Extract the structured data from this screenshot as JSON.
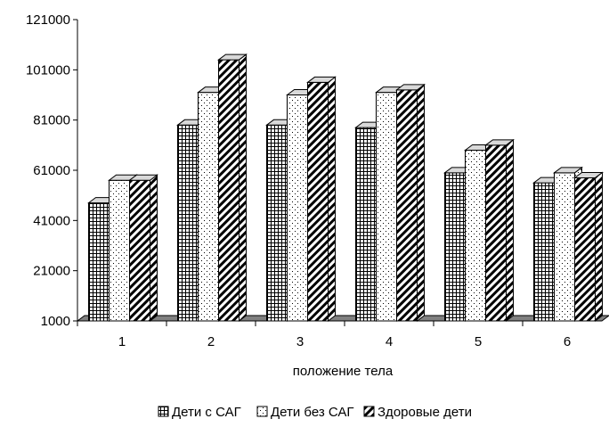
{
  "chart_data": {
    "type": "bar",
    "title": "",
    "xlabel": "положение тела",
    "ylabel": "",
    "categories": [
      "1",
      "2",
      "3",
      "4",
      "5",
      "6"
    ],
    "series": [
      {
        "name": "Дети с САГ",
        "values": [
          48000,
          79000,
          79000,
          78000,
          60000,
          56000
        ]
      },
      {
        "name": "Дети без САГ",
        "values": [
          57000,
          92000,
          91000,
          92000,
          69000,
          60000
        ]
      },
      {
        "name": "Здоровые дети",
        "values": [
          57000,
          105000,
          96000,
          93000,
          71000,
          58000
        ]
      }
    ],
    "ylim": [
      1000,
      121000
    ],
    "yticks": [
      1000,
      21000,
      41000,
      61000,
      81000,
      101000,
      121000
    ],
    "grid": false,
    "legend": "bottom",
    "colors": {
      "bar_fill": "#ffffff",
      "bar_top": "#d9d9d9",
      "floor": "#808080",
      "ink": "#000000"
    }
  }
}
